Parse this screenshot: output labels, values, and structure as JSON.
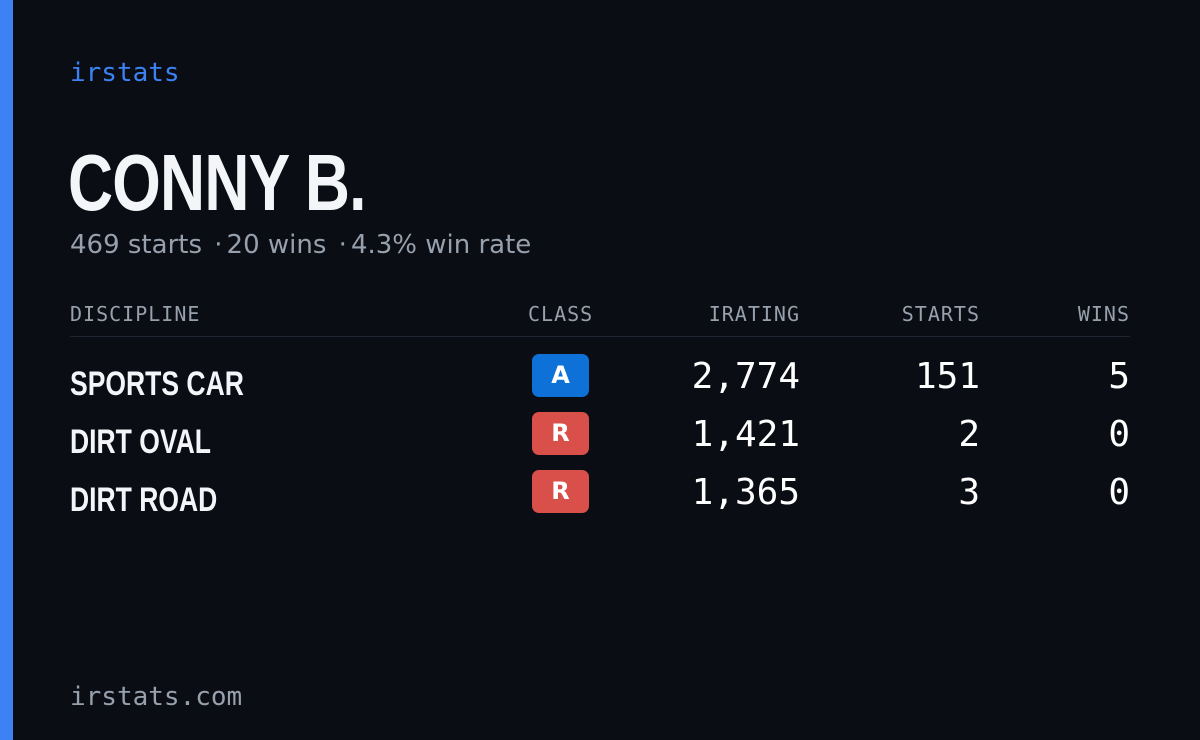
{
  "colors": {
    "background": "#0a0d14",
    "accent": "#3d82f5",
    "name": "#f3f5f8",
    "muted": "#97a0ad",
    "class_a": "#0e71d8",
    "class_r": "#d9504b"
  },
  "brand": "irstats",
  "player": {
    "name": "CONNY B.",
    "starts": "469 starts",
    "wins": "20 wins",
    "win_rate": "4.3% win rate",
    "separator": "·"
  },
  "table": {
    "headers": {
      "discipline": "DISCIPLINE",
      "class": "CLASS",
      "irating": "IRATING",
      "starts": "STARTS",
      "wins": "WINS"
    },
    "rows": [
      {
        "discipline": "SPORTS CAR",
        "class": "A",
        "class_color": "#0e71d8",
        "irating": "2,774",
        "starts": "151",
        "wins": "5"
      },
      {
        "discipline": "DIRT OVAL",
        "class": "R",
        "class_color": "#d9504b",
        "irating": "1,421",
        "starts": "2",
        "wins": "0"
      },
      {
        "discipline": "DIRT ROAD",
        "class": "R",
        "class_color": "#d9504b",
        "irating": "1,365",
        "starts": "3",
        "wins": "0"
      }
    ]
  },
  "footer": "irstats.com"
}
